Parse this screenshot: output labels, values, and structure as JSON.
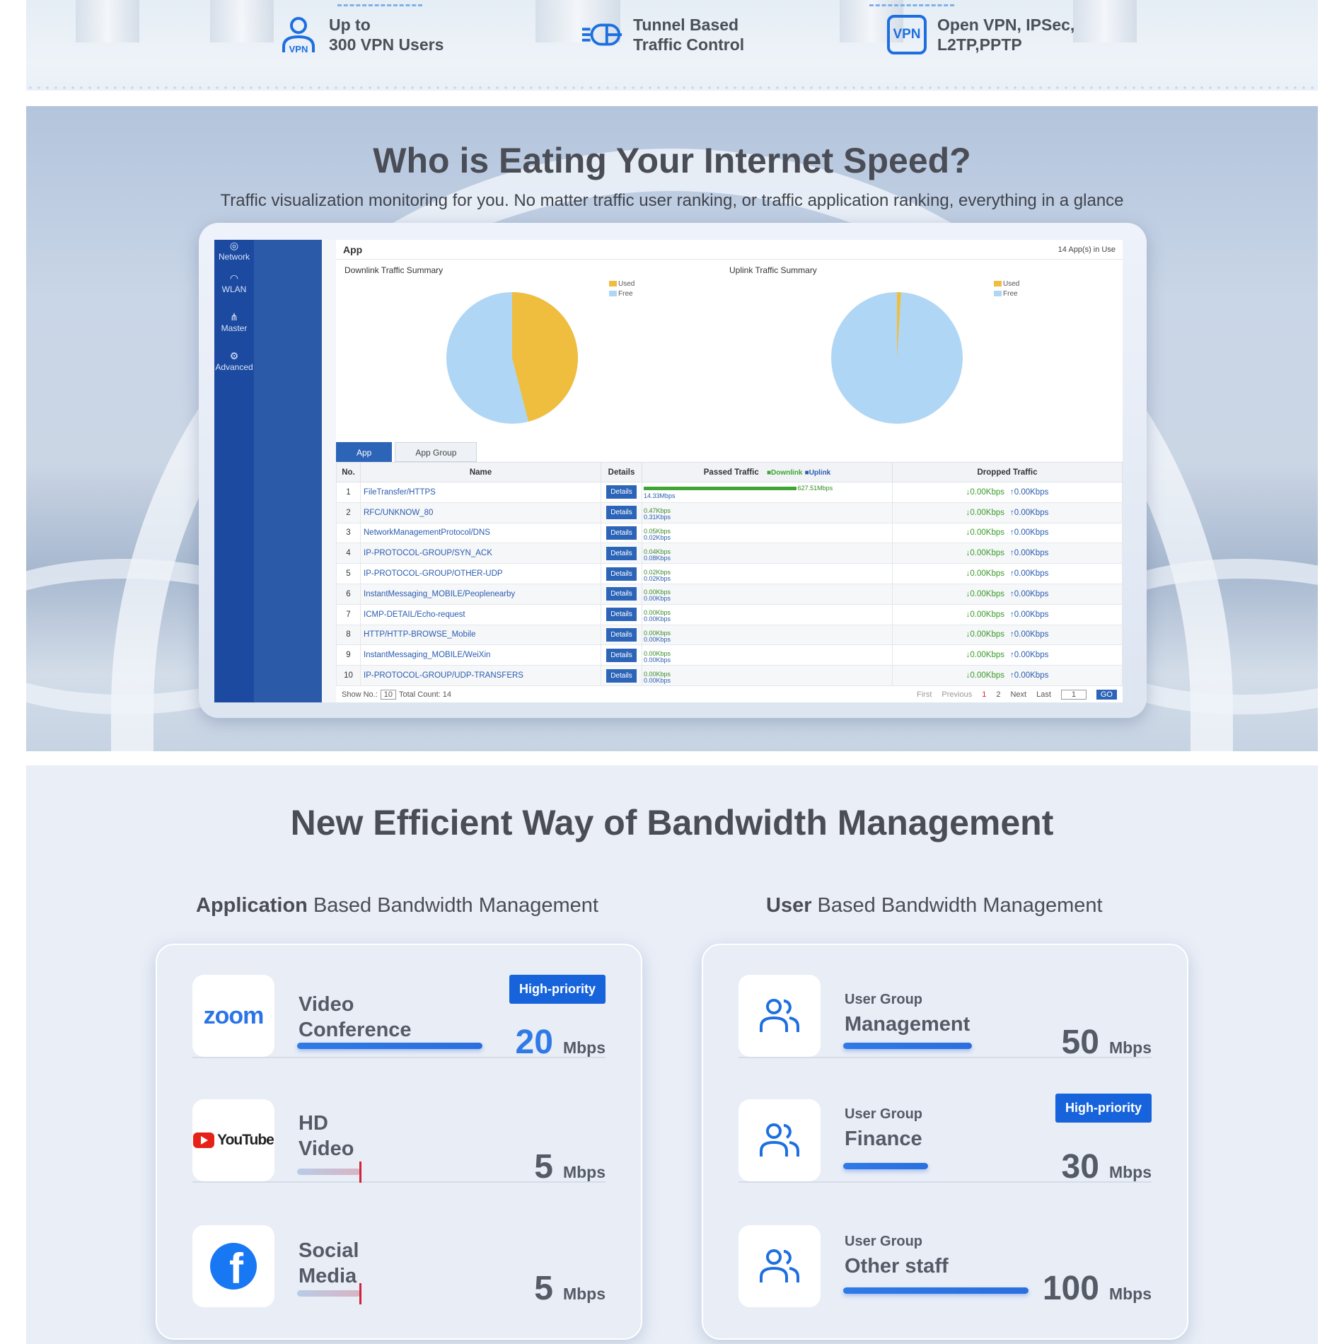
{
  "features": [
    {
      "icon": "vpn-user-icon",
      "line1": "Up to",
      "line2": "300 VPN Users"
    },
    {
      "icon": "tunnel-traffic-icon",
      "line1": "Tunnel Based",
      "line2": "Traffic Control"
    },
    {
      "icon": "vpn-protocol-icon",
      "line1": "Open VPN, IPSec,",
      "line2": "L2TP,PPTP"
    }
  ],
  "vpn_icon_text": "VPN",
  "traffic": {
    "title": "Who is Eating Your Internet Speed?",
    "subtitle": "Traffic visualization monitoring for you. No matter traffic user ranking, or traffic application ranking, everything in a glance"
  },
  "dashboard": {
    "nav": [
      "Network",
      "WLAN",
      "Master",
      "Advanced"
    ],
    "panel_title": "App",
    "apps_in_use": "14 App(s) in Use",
    "downlink_title": "Downlink Traffic Summary",
    "uplink_title": "Uplink Traffic Summary",
    "legend_used": "Used",
    "legend_free": "Free",
    "downlink_used_fraction": 0.46,
    "uplink_used_fraction": 0.01,
    "colors": {
      "used": "#efbe3e",
      "free": "#b0d6f5"
    },
    "tabs": [
      "App",
      "App Group"
    ],
    "columns": {
      "no": "No.",
      "name": "Name",
      "details": "Details",
      "passed": "Passed Traffic",
      "downlink": "Downlink",
      "uplink": "Uplink",
      "dropped": "Dropped Traffic"
    },
    "details_label": "Details",
    "rows": [
      {
        "no": "1",
        "name": "FileTransfer/HTTPS",
        "down": "627.51Mbps",
        "up": "14.33Mbps",
        "bar": 0.98
      },
      {
        "no": "2",
        "name": "RFC/UNKNOW_80",
        "down": "0.47Kbps",
        "up": "0.31Kbps",
        "bar": 0
      },
      {
        "no": "3",
        "name": "NetworkManagementProtocol/DNS",
        "down": "0.05Kbps",
        "up": "0.02Kbps",
        "bar": 0
      },
      {
        "no": "4",
        "name": "IP-PROTOCOL-GROUP/SYN_ACK",
        "down": "0.04Kbps",
        "up": "0.08Kbps",
        "bar": 0
      },
      {
        "no": "5",
        "name": "IP-PROTOCOL-GROUP/OTHER-UDP",
        "down": "0.02Kbps",
        "up": "0.02Kbps",
        "bar": 0
      },
      {
        "no": "6",
        "name": "InstantMessaging_MOBILE/Peoplenearby",
        "down": "0.00Kbps",
        "up": "0.00Kbps",
        "bar": 0
      },
      {
        "no": "7",
        "name": "ICMP-DETAIL/Echo-request",
        "down": "0.00Kbps",
        "up": "0.00Kbps",
        "bar": 0
      },
      {
        "no": "8",
        "name": "HTTP/HTTP-BROWSE_Mobile",
        "down": "0.00Kbps",
        "up": "0.00Kbps",
        "bar": 0
      },
      {
        "no": "9",
        "name": "InstantMessaging_MOBILE/WeiXin",
        "down": "0.00Kbps",
        "up": "0.00Kbps",
        "bar": 0
      },
      {
        "no": "10",
        "name": "IP-PROTOCOL-GROUP/UDP-TRANSFERS",
        "down": "0.00Kbps",
        "up": "0.00Kbps",
        "bar": 0
      }
    ],
    "dropped_down": "↓0.00Kbps",
    "dropped_up": "↑0.00Kbps",
    "footer": {
      "show_no": "Show No.:",
      "show_value": "10",
      "total": "Total Count: 14",
      "first": "First",
      "previous": "Previous",
      "page1": "1",
      "page2": "2",
      "next": "Next",
      "last": "Last",
      "page_input": "1",
      "go": "GO"
    }
  },
  "bandwidth": {
    "title": "New Efficient Way of Bandwidth Management",
    "app_col_bold": "Application",
    "app_col_rest": " Based Bandwidth Management",
    "user_col_bold": "User",
    "user_col_rest": " Based Bandwidth Management",
    "high_priority": "High-priority",
    "unit": "Mbps",
    "apps": [
      {
        "logo": "zoom-logo",
        "logo_text": "zoom",
        "label1": "Video",
        "label2": "Conference",
        "speed": "20",
        "priority": true
      },
      {
        "logo": "youtube-logo",
        "logo_text": "YouTube",
        "label1": "HD",
        "label2": "Video",
        "speed": "5",
        "priority": false
      },
      {
        "logo": "facebook-logo",
        "logo_text": "f",
        "label1": "Social",
        "label2": "Media",
        "speed": "5",
        "priority": false
      }
    ],
    "user_group_label": "User Group",
    "users": [
      {
        "icon": "user-group-icon",
        "group": "Management",
        "speed": "50",
        "priority": false
      },
      {
        "icon": "user-group-icon",
        "group": "Finance",
        "speed": "30",
        "priority": true
      },
      {
        "icon": "user-group-icon",
        "group": "Other staff",
        "speed": "100",
        "priority": false
      }
    ]
  }
}
